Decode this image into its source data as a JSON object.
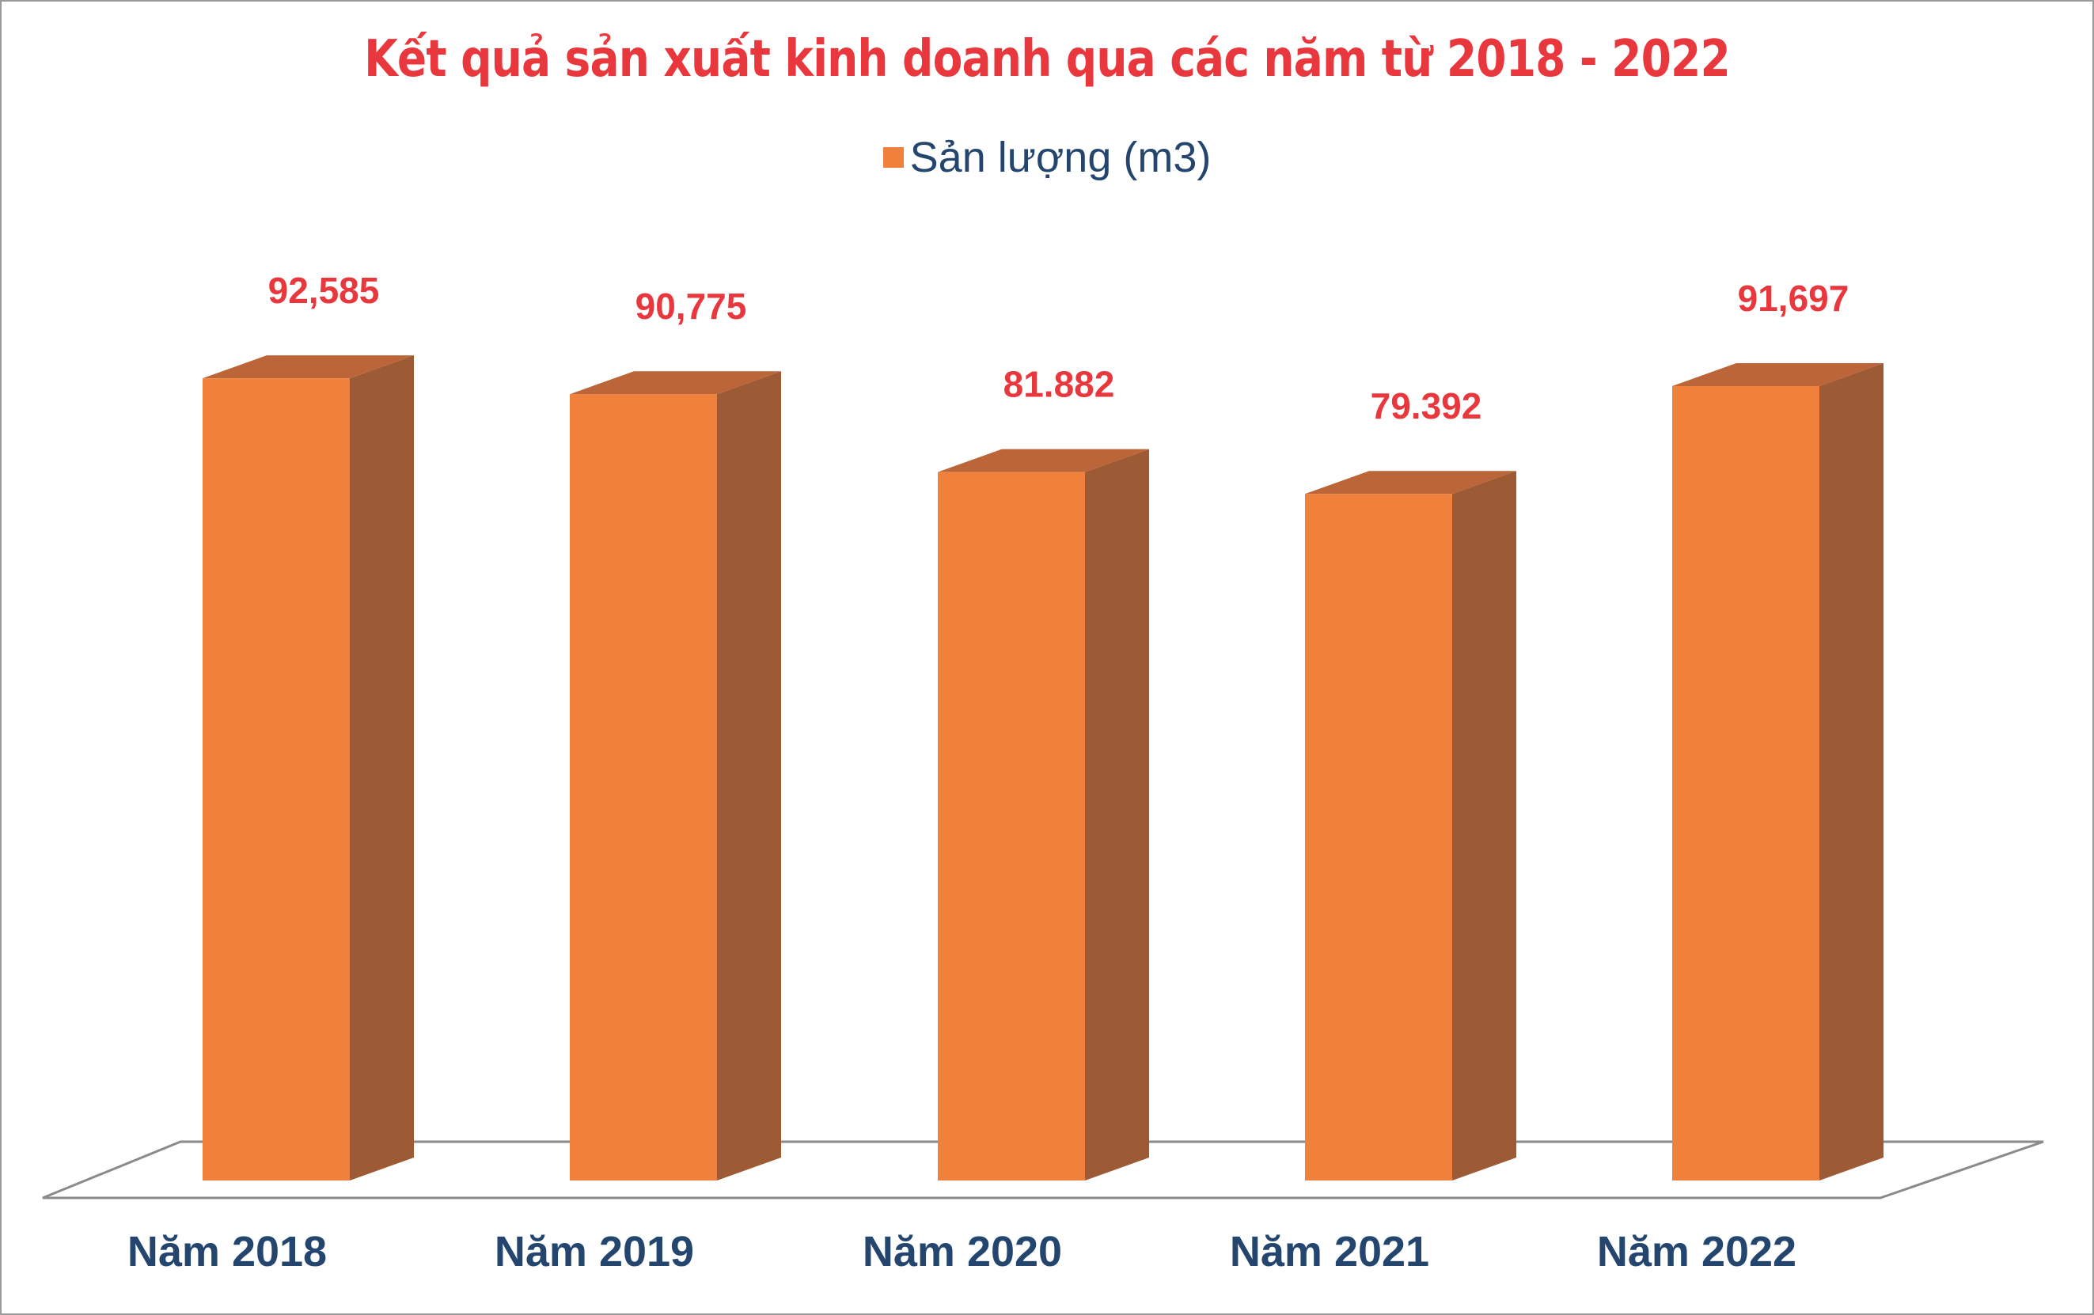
{
  "chart_data": {
    "type": "bar",
    "style": "3d-column",
    "title": "Kết quả sản xuất kinh doanh qua các năm từ 2018 - 2022",
    "legend": {
      "position": "top",
      "entries": [
        "Sản lượng (m3)"
      ]
    },
    "categories": [
      "Năm 2018",
      "Năm 2019",
      "Năm 2020",
      "Năm 2021",
      "Năm 2022"
    ],
    "series": [
      {
        "name": "Sản lượng (m3)",
        "values": [
          92585,
          90775,
          81882,
          79392,
          91697
        ],
        "data_labels": [
          "92,585",
          "90,775",
          "81.882",
          "79.392",
          "91,697"
        ]
      }
    ],
    "xlabel": "",
    "ylabel": "",
    "grid": false,
    "colors": {
      "front": "#f0813d",
      "side": "#9c5a35",
      "top": "#bb6538",
      "title": "#e8383d",
      "data_label": "#e8383d",
      "category_label": "#24466e",
      "floor_line": "#8a8a8a"
    }
  }
}
